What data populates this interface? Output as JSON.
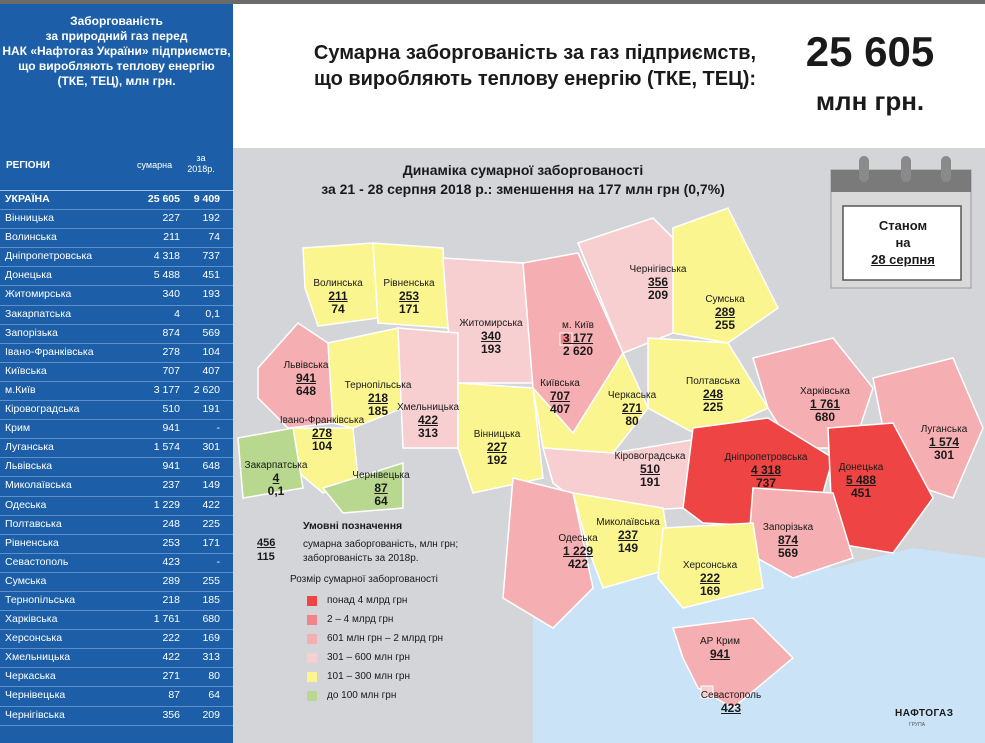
{
  "sidebar": {
    "title_lines": [
      "Заборгованість",
      "за природний газ перед",
      "НАК «Нафтогаз України» підприємств,",
      "що виробляють теплову енергію",
      "(ТКЕ, ТЕЦ), млн грн."
    ],
    "col_region": "РЕГІОНИ",
    "col_sum": "сумарна",
    "col_2018_l1": "за",
    "col_2018_l2": "2018р.",
    "rows": [
      {
        "name": "УКРАЇНА",
        "sum": "25 605",
        "y2018": "9 409"
      },
      {
        "name": "Вінницька",
        "sum": "227",
        "y2018": "192"
      },
      {
        "name": "Волинська",
        "sum": "211",
        "y2018": "74"
      },
      {
        "name": "Дніпропетровська",
        "sum": "4 318",
        "y2018": "737"
      },
      {
        "name": "Донецька",
        "sum": "5 488",
        "y2018": "451"
      },
      {
        "name": "Житомирська",
        "sum": "340",
        "y2018": "193"
      },
      {
        "name": "Закарпатська",
        "sum": "4",
        "y2018": "0,1"
      },
      {
        "name": "Запорізька",
        "sum": "874",
        "y2018": "569"
      },
      {
        "name": "Івано-Франківська",
        "sum": "278",
        "y2018": "104"
      },
      {
        "name": "Київська",
        "sum": "707",
        "y2018": "407"
      },
      {
        "name": "м.Київ",
        "sum": "3 177",
        "y2018": "2 620"
      },
      {
        "name": "Кіровоградська",
        "sum": "510",
        "y2018": "191"
      },
      {
        "name": "Крим",
        "sum": "941",
        "y2018": "-"
      },
      {
        "name": "Луганська",
        "sum": "1 574",
        "y2018": "301"
      },
      {
        "name": "Львівська",
        "sum": "941",
        "y2018": "648"
      },
      {
        "name": "Миколаївська",
        "sum": "237",
        "y2018": "149"
      },
      {
        "name": "Одеська",
        "sum": "1 229",
        "y2018": "422"
      },
      {
        "name": "Полтавська",
        "sum": "248",
        "y2018": "225"
      },
      {
        "name": "Рівненська",
        "sum": "253",
        "y2018": "171"
      },
      {
        "name": "Севастополь",
        "sum": "423",
        "y2018": "-"
      },
      {
        "name": "Сумська",
        "sum": "289",
        "y2018": "255"
      },
      {
        "name": "Тернопільська",
        "sum": "218",
        "y2018": "185"
      },
      {
        "name": "Харківська",
        "sum": "1 761",
        "y2018": "680"
      },
      {
        "name": "Херсонська",
        "sum": "222",
        "y2018": "169"
      },
      {
        "name": "Хмельницька",
        "sum": "422",
        "y2018": "313"
      },
      {
        "name": "Черкаська",
        "sum": "271",
        "y2018": "80"
      },
      {
        "name": "Чернівецька",
        "sum": "87",
        "y2018": "64"
      },
      {
        "name": "Чернігівська",
        "sum": "356",
        "y2018": "209"
      }
    ]
  },
  "header": {
    "line1": "Сумарна заборгованість за газ підприємств,",
    "line2": "що виробляють теплову енергію (ТКЕ, ТЕЦ):",
    "total": "25 605",
    "unit": "млн грн."
  },
  "map": {
    "title1": "Динаміка сумарної заборгованості",
    "title2": "за 21 - 28 серпня 2018 р.: зменшення на 177 млн грн (0,7%)",
    "calendar_line1": "Станом",
    "calendar_line2": "на",
    "calendar_date": "28 серпня",
    "regions": [
      {
        "name": "Волинська",
        "total": "211",
        "y2018": "74"
      },
      {
        "name": "Рівненська",
        "total": "253",
        "y2018": "171"
      },
      {
        "name": "Житомирська",
        "total": "340",
        "y2018": "193"
      },
      {
        "name": "м. Київ",
        "total": "3 177",
        "y2018": "2 620"
      },
      {
        "name": "Чернігівська",
        "total": "356",
        "y2018": "209"
      },
      {
        "name": "Сумська",
        "total": "289",
        "y2018": "255"
      },
      {
        "name": "Львівська",
        "total": "941",
        "y2018": "648"
      },
      {
        "name": "Тернопільська",
        "total": "218",
        "y2018": "185"
      },
      {
        "name": "Хмельницька",
        "total": "422",
        "y2018": "313"
      },
      {
        "name": "Київська",
        "total": "707",
        "y2018": "407"
      },
      {
        "name": "Черкаська",
        "total": "271",
        "y2018": "80"
      },
      {
        "name": "Полтавська",
        "total": "248",
        "y2018": "225"
      },
      {
        "name": "Харківська",
        "total": "1 761",
        "y2018": "680"
      },
      {
        "name": "Луганська",
        "total": "1 574",
        "y2018": "301"
      },
      {
        "name": "Івано-Франківська",
        "total": "278",
        "y2018": "104"
      },
      {
        "name": "Вінницька",
        "total": "227",
        "y2018": "192"
      },
      {
        "name": "Кіровоградська",
        "total": "510",
        "y2018": "191"
      },
      {
        "name": "Дніпропетровська",
        "total": "4 318",
        "y2018": "737"
      },
      {
        "name": "Донецька",
        "total": "5 488",
        "y2018": "451"
      },
      {
        "name": "Закарпатська",
        "total": "4",
        "y2018": "0,1"
      },
      {
        "name": "Чернівецька",
        "total": "87",
        "y2018": "64"
      },
      {
        "name": "Одеська",
        "total": "1 229",
        "y2018": "422"
      },
      {
        "name": "Миколаївська",
        "total": "237",
        "y2018": "149"
      },
      {
        "name": "Запорізька",
        "total": "874",
        "y2018": "569"
      },
      {
        "name": "Херсонська",
        "total": "222",
        "y2018": "169"
      },
      {
        "name": "АР Крим",
        "total": "941",
        "y2018": ""
      },
      {
        "name": "Севастополь",
        "total": "423",
        "y2018": ""
      }
    ]
  },
  "legend": {
    "title": "Умовні позначення",
    "example_total": "456",
    "example_2018": "115",
    "desc_total": "сумарна заборгованість, млн грн;",
    "desc_2018": "заборгованість за 2018р.",
    "size_title": "Розмір сумарної заборгованості",
    "bins": [
      {
        "label": "понад 4 млрд грн",
        "color": "#ee4444"
      },
      {
        "label": "2 – 4 млрд грн",
        "color": "#f2838a"
      },
      {
        "label": "601 млн грн – 2 млрд грн",
        "color": "#f5aeb1"
      },
      {
        "label": "301 – 600 млн грн",
        "color": "#f8cfd0"
      },
      {
        "label": "101 – 300 млн грн",
        "color": "#fbf58f"
      },
      {
        "label": "до 100 млн грн",
        "color": "#b9d88f"
      }
    ]
  },
  "logo": {
    "name": "НАФТОГАЗ",
    "sub": "ГРУПА"
  },
  "colors": {
    "sidebar": "#1c5fa8",
    "map_bg": "#d4d5d9",
    "sea": "#cbe3f7"
  }
}
